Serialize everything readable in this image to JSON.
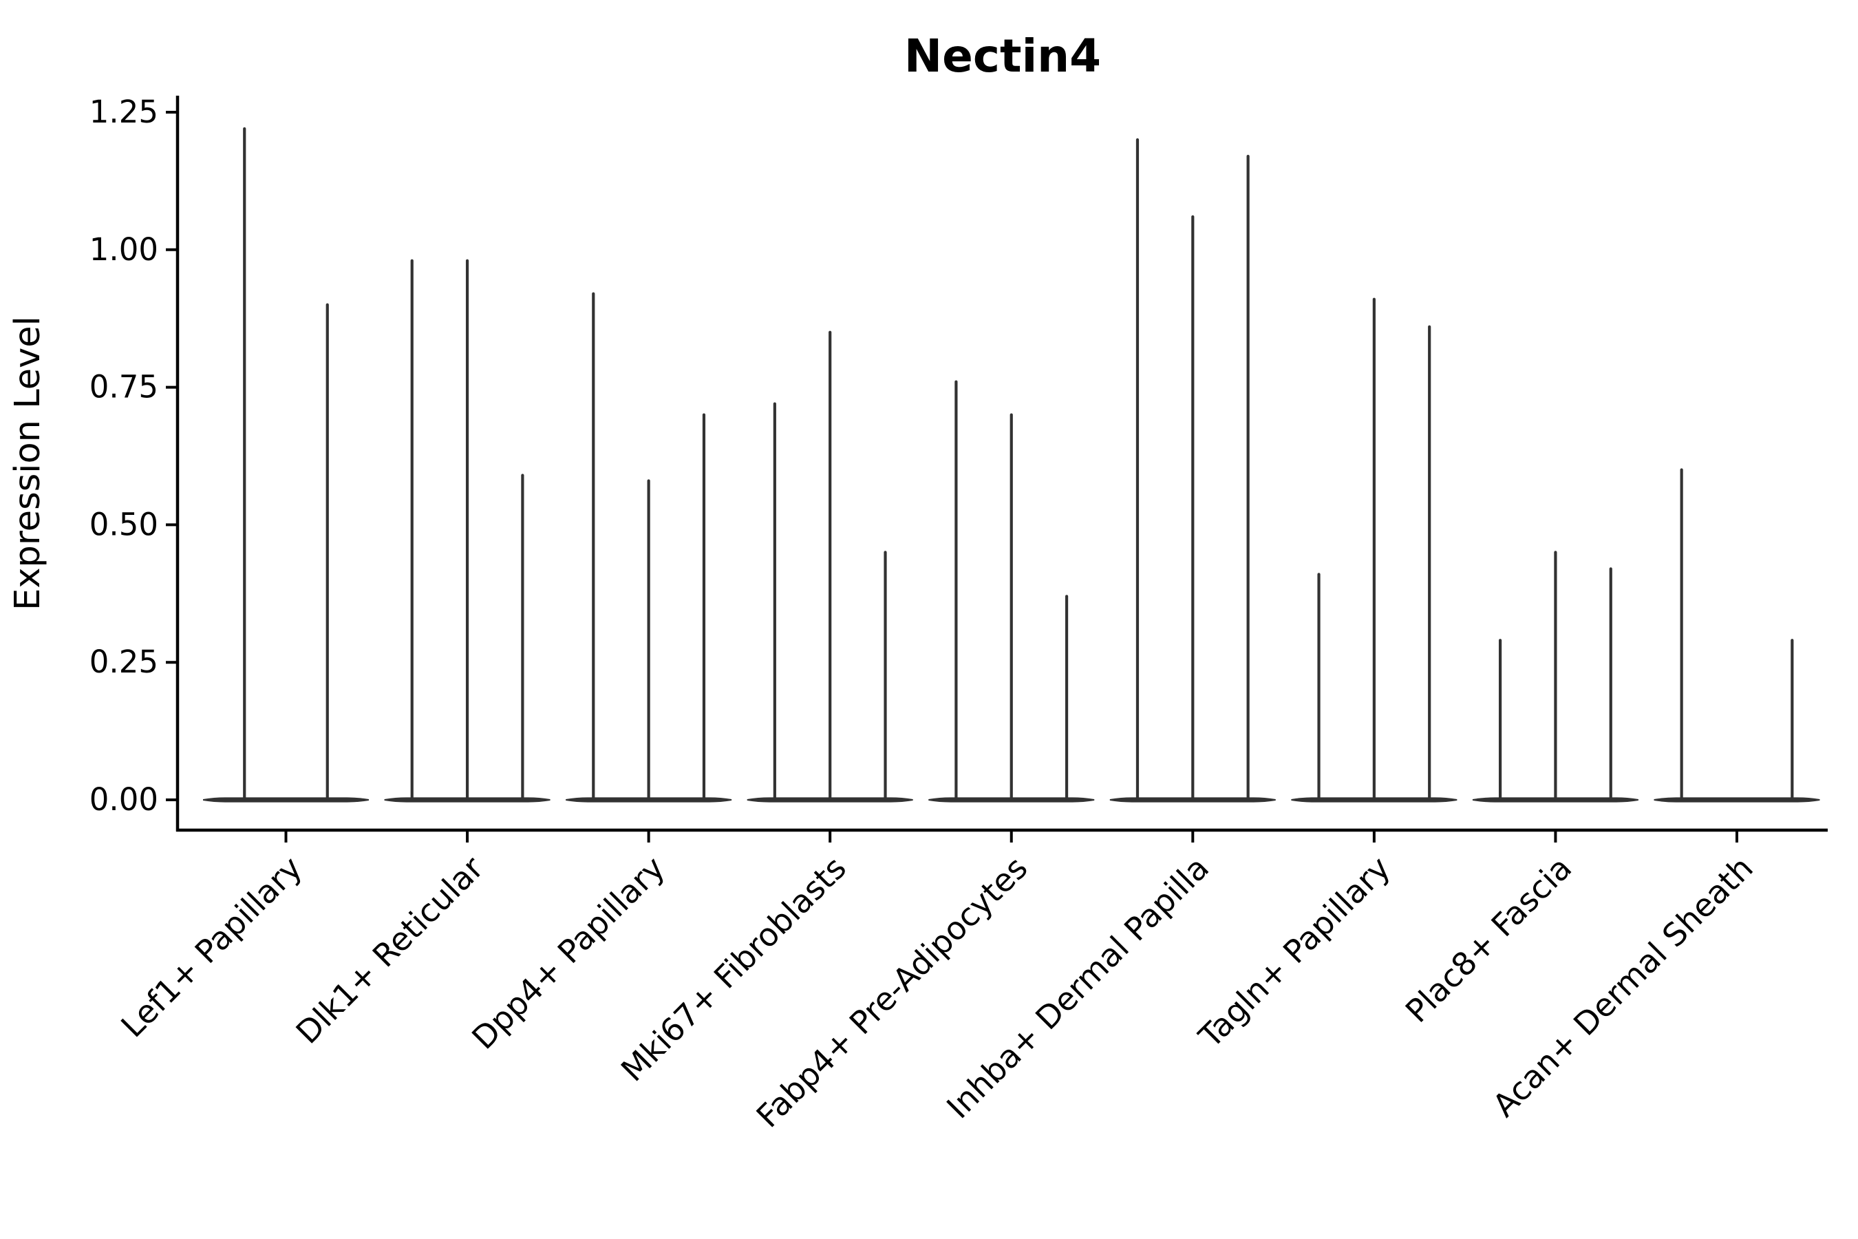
{
  "title": "Nectin4",
  "y_axis": {
    "label": "Expression Level",
    "tick_labels": [
      "0.00",
      "0.25",
      "0.50",
      "0.75",
      "1.00",
      "1.25"
    ]
  },
  "colors": {
    "violin_ink": "#323232",
    "axis_ink": "#000000",
    "background": "#ffffff"
  },
  "chart_data": {
    "type": "violin",
    "title": "Nectin4",
    "xlabel": "",
    "ylabel": "Expression Level",
    "ylim": [
      -0.05,
      1.28
    ],
    "yticks": [
      0,
      0.25,
      0.5,
      0.75,
      1.0,
      1.25
    ],
    "ytick_labels": [
      "0.00",
      "0.25",
      "0.50",
      "0.75",
      "1.00",
      "1.25"
    ],
    "grid": false,
    "legend": "none",
    "xtick_rotation": 45,
    "description": "Collapsed single-cell violin plot: per category, 2-3 extremely thin violins; nearly all density mass sits at expression 0 (flat bar on the baseline) with a thin spike rising to each violin's maximum expression value.",
    "categories": [
      "Lef1+ Papillary",
      "Dlk1+ Reticular",
      "Dpp4+ Papillary",
      "Mki67+ Fibroblasts",
      "Fabp4+ Pre-Adipocytes",
      "Inhba+ Dermal Papilla",
      "Tagln+ Papillary",
      "Plac8+ Fascia",
      "Acan+ Dermal Sheath"
    ],
    "violins": [
      {
        "category": "Lef1+ Papillary",
        "spike_maxima": [
          1.22,
          0.9
        ]
      },
      {
        "category": "Dlk1+ Reticular",
        "spike_maxima": [
          0.98,
          0.98,
          0.59
        ]
      },
      {
        "category": "Dpp4+ Papillary",
        "spike_maxima": [
          0.92,
          0.58,
          0.7
        ]
      },
      {
        "category": "Mki67+ Fibroblasts",
        "spike_maxima": [
          0.72,
          0.85,
          0.45
        ]
      },
      {
        "category": "Fabp4+ Pre-Adipocytes",
        "spike_maxima": [
          0.76,
          0.7,
          0.37
        ]
      },
      {
        "category": "Inhba+ Dermal Papilla",
        "spike_maxima": [
          1.2,
          1.06,
          1.17
        ]
      },
      {
        "category": "Tagln+ Papillary",
        "spike_maxima": [
          0.41,
          0.91,
          0.86
        ]
      },
      {
        "category": "Plac8+ Fascia",
        "spike_maxima": [
          0.29,
          0.45,
          0.42
        ]
      },
      {
        "category": "Acan+ Dermal Sheath",
        "spike_maxima": [
          0.6,
          0,
          0.29
        ]
      }
    ]
  }
}
